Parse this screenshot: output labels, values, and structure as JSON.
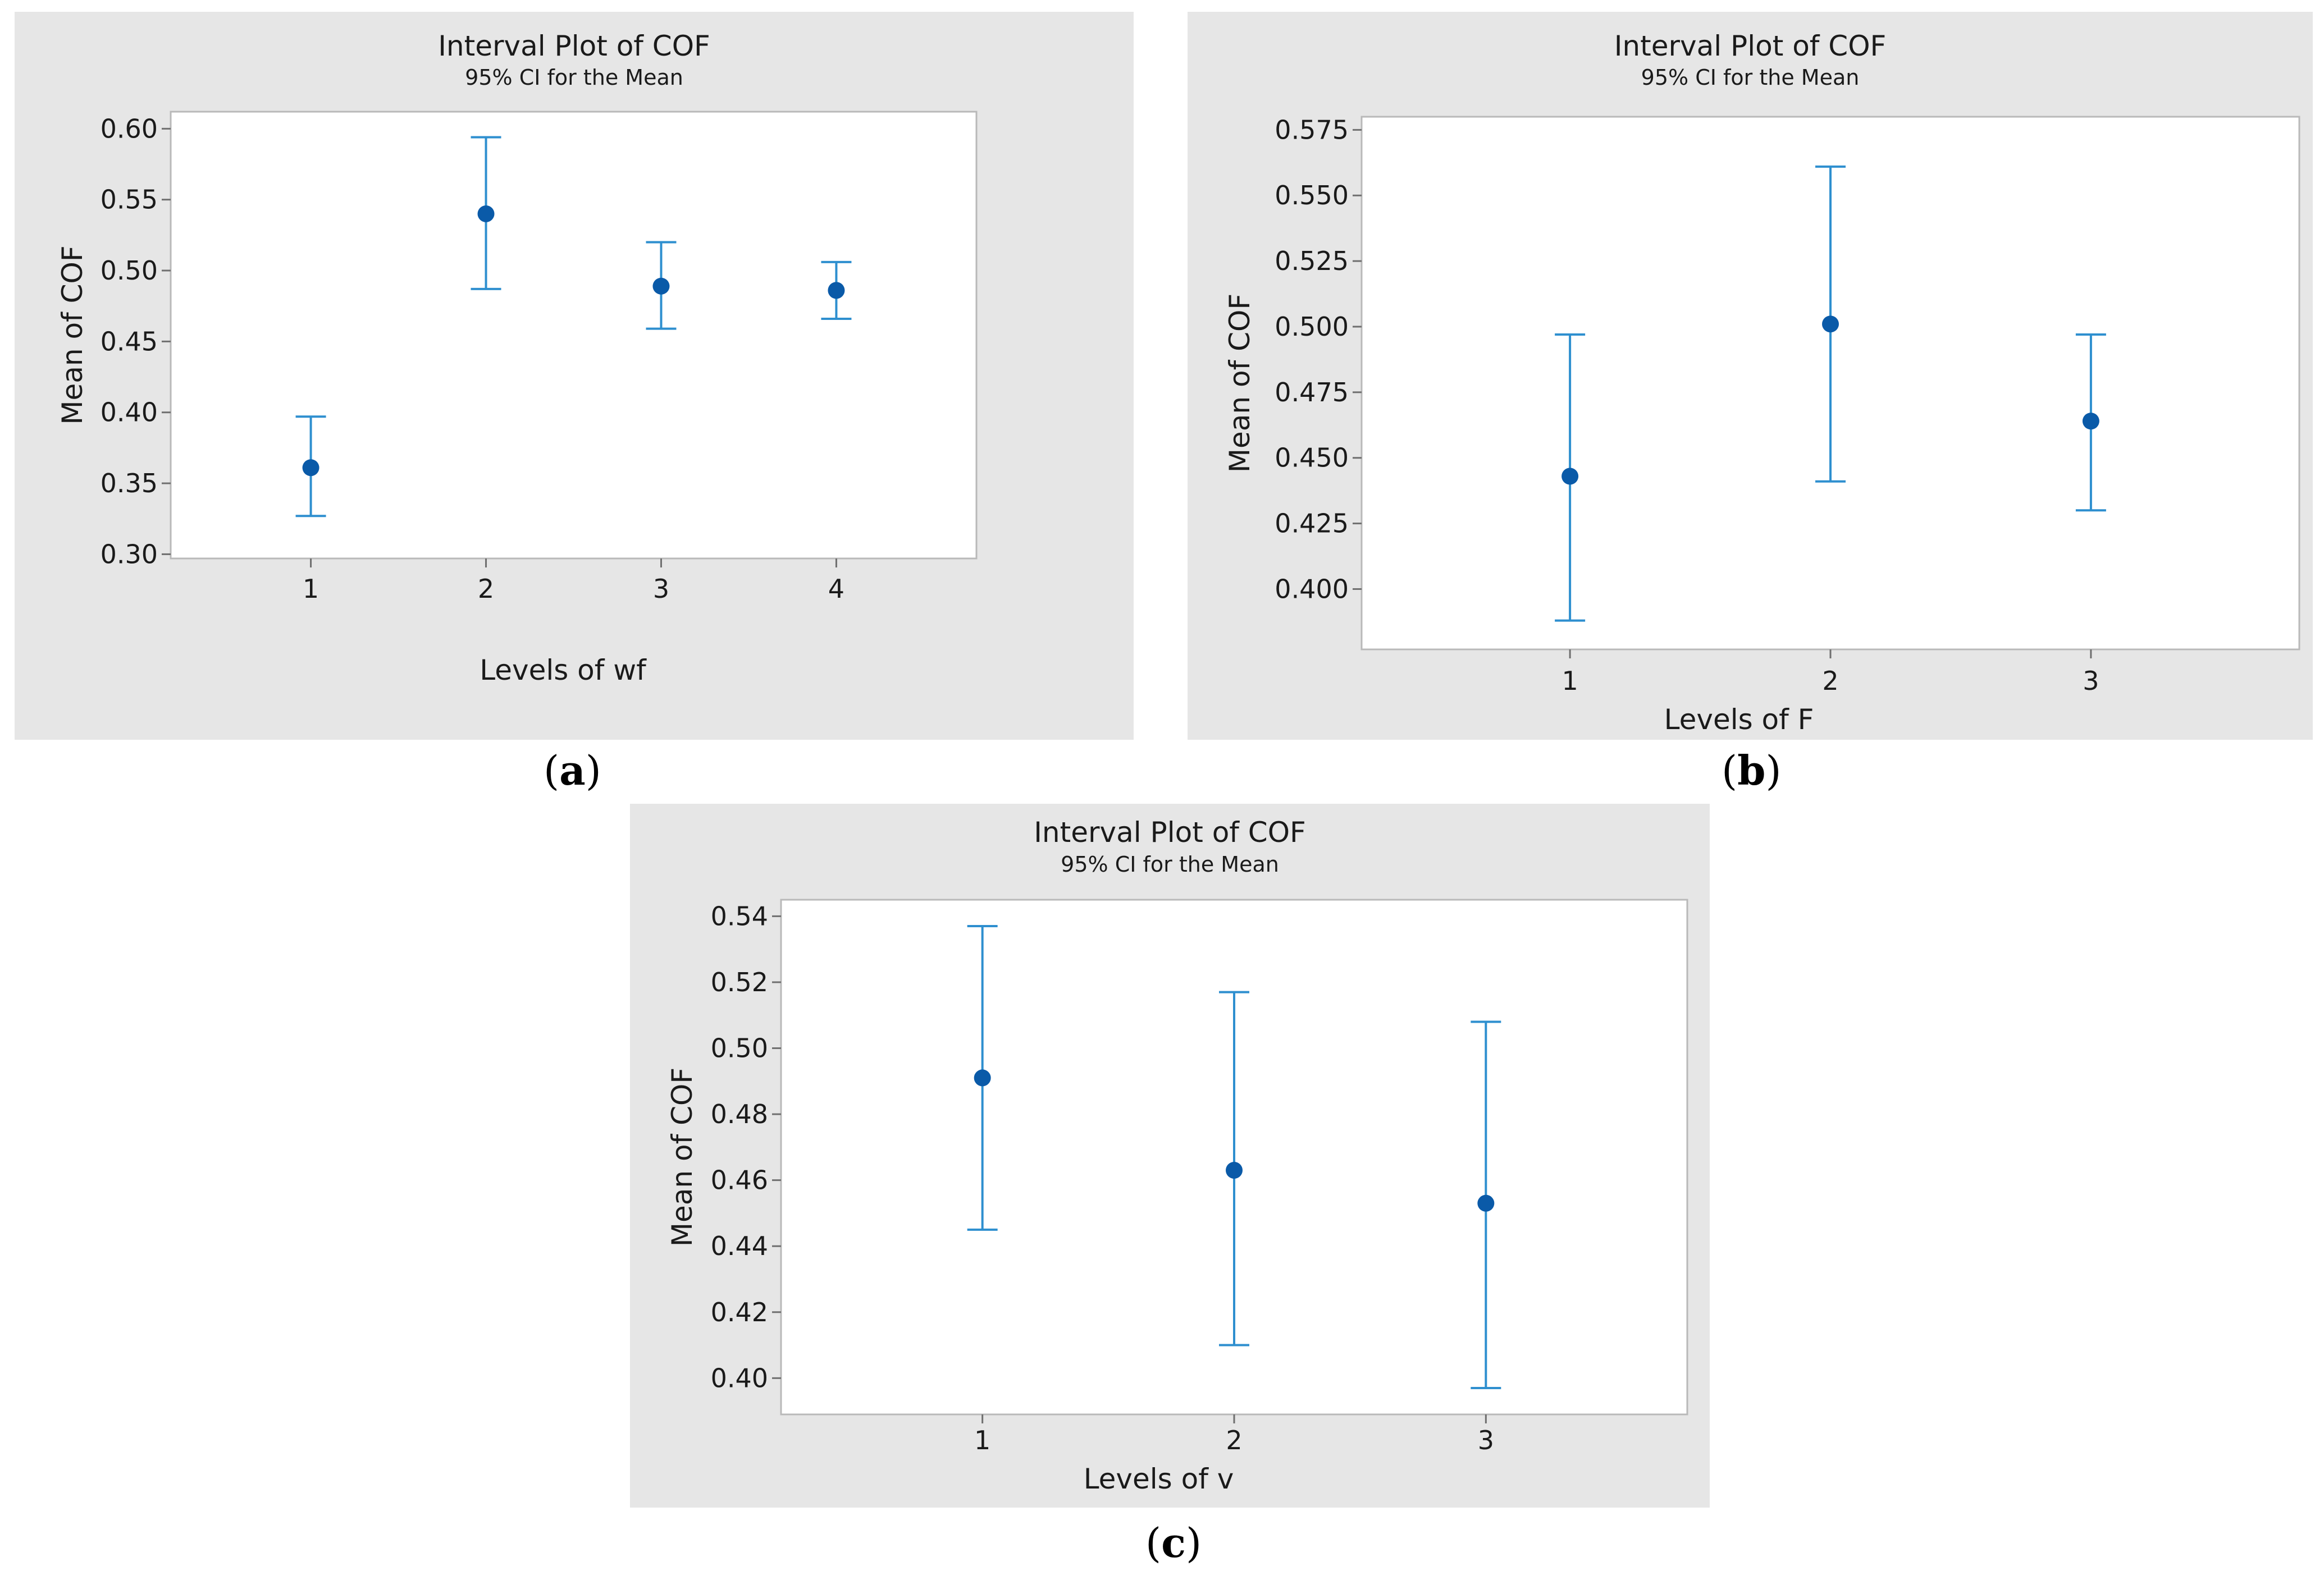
{
  "chart_data": [
    {
      "type": "interval",
      "panel_label": "a",
      "title": "Interval Plot of COF",
      "subtitle": "95% CI for the Mean",
      "xlabel": "Levels of wf",
      "ylabel": "Mean of COF",
      "categories": [
        "1",
        "2",
        "3",
        "4"
      ],
      "means": [
        0.361,
        0.54,
        0.489,
        0.486
      ],
      "ci_lower": [
        0.327,
        0.487,
        0.459,
        0.466
      ],
      "ci_upper": [
        0.397,
        0.594,
        0.52,
        0.506
      ],
      "yticks": [
        0.3,
        0.35,
        0.4,
        0.45,
        0.5,
        0.55,
        0.6
      ],
      "ytick_labels": [
        "0.30",
        "0.35",
        "0.40",
        "0.45",
        "0.50",
        "0.55",
        "0.60"
      ],
      "ylim": [
        0.297,
        0.612
      ],
      "colors": {
        "mean": "#0a5aa8",
        "interval": "#2e8fcf",
        "panel_bg": "#e6e6e6"
      }
    },
    {
      "type": "interval",
      "panel_label": "b",
      "title": "Interval Plot of COF",
      "subtitle": "95% CI for the Mean",
      "xlabel": "Levels of F",
      "ylabel": "Mean of COF",
      "categories": [
        "1",
        "2",
        "3"
      ],
      "means": [
        0.443,
        0.501,
        0.464
      ],
      "ci_lower": [
        0.388,
        0.441,
        0.43
      ],
      "ci_upper": [
        0.497,
        0.561,
        0.497
      ],
      "yticks": [
        0.4,
        0.425,
        0.45,
        0.475,
        0.5,
        0.525,
        0.55,
        0.575
      ],
      "ytick_labels": [
        "0.400",
        "0.425",
        "0.450",
        "0.475",
        "0.500",
        "0.525",
        "0.550",
        "0.575"
      ],
      "ylim": [
        0.377,
        0.58
      ],
      "colors": {
        "mean": "#0a5aa8",
        "interval": "#2e8fcf",
        "panel_bg": "#e6e6e6"
      }
    },
    {
      "type": "interval",
      "panel_label": "c",
      "title": "Interval Plot of COF",
      "subtitle": "95% CI for the Mean",
      "xlabel": "Levels of v",
      "ylabel": "Mean of COF",
      "categories": [
        "1",
        "2",
        "3"
      ],
      "means": [
        0.491,
        0.463,
        0.453
      ],
      "ci_lower": [
        0.445,
        0.41,
        0.397
      ],
      "ci_upper": [
        0.537,
        0.517,
        0.508
      ],
      "yticks": [
        0.4,
        0.42,
        0.44,
        0.46,
        0.48,
        0.5,
        0.52,
        0.54
      ],
      "ytick_labels": [
        "0.40",
        "0.42",
        "0.44",
        "0.46",
        "0.48",
        "0.50",
        "0.52",
        "0.54"
      ],
      "ylim": [
        0.389,
        0.545
      ],
      "colors": {
        "mean": "#0a5aa8",
        "interval": "#2e8fcf",
        "panel_bg": "#e6e6e6"
      }
    }
  ]
}
